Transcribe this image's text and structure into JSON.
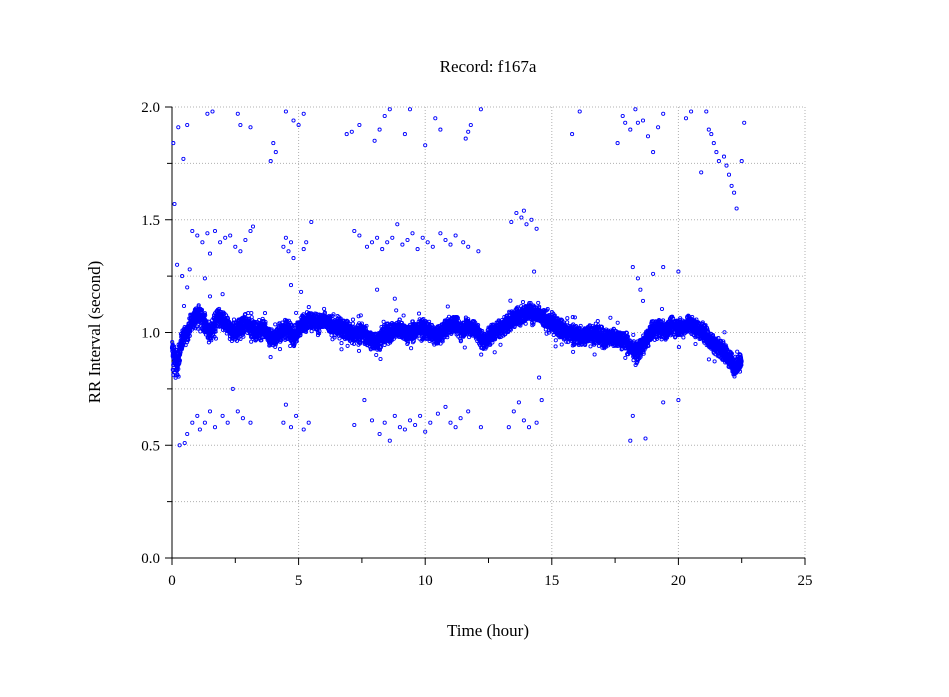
{
  "chart_data": {
    "type": "scatter",
    "title": "Record:  f167a",
    "xlabel": "Time (hour)",
    "ylabel": "RR Interval (second)",
    "xlim": [
      0,
      25
    ],
    "ylim": [
      0.0,
      2.0
    ],
    "x_ticks": [
      0,
      5,
      10,
      15,
      20,
      25
    ],
    "x_tick_labels": [
      "0",
      "5",
      "10",
      "15",
      "20",
      "25"
    ],
    "y_ticks": [
      0.0,
      0.5,
      1.0,
      1.5,
      2.0
    ],
    "y_tick_labels": [
      "0.0",
      "0.5",
      "1.0",
      "1.5",
      "2.0"
    ],
    "grid": true,
    "grid_style": "dotted",
    "marker": "open-circle",
    "series_color": "#0000ff",
    "x_range_of_data": [
      0,
      22.5
    ],
    "main_band": [
      [
        0.0,
        0.93
      ],
      [
        0.2,
        0.85
      ],
      [
        0.4,
        0.97
      ],
      [
        0.6,
        1.0
      ],
      [
        0.8,
        1.05
      ],
      [
        1.0,
        1.08
      ],
      [
        1.2,
        1.06
      ],
      [
        1.5,
        1.0
      ],
      [
        1.8,
        1.07
      ],
      [
        2.1,
        1.04
      ],
      [
        2.4,
        1.0
      ],
      [
        2.7,
        1.02
      ],
      [
        3.0,
        1.04
      ],
      [
        3.3,
        1.0
      ],
      [
        3.6,
        1.02
      ],
      [
        3.9,
        0.97
      ],
      [
        4.2,
        0.99
      ],
      [
        4.5,
        1.02
      ],
      [
        4.8,
        0.98
      ],
      [
        5.1,
        1.03
      ],
      [
        5.4,
        1.06
      ],
      [
        5.7,
        1.04
      ],
      [
        6.0,
        1.05
      ],
      [
        6.3,
        1.03
      ],
      [
        6.6,
        1.02
      ],
      [
        6.9,
        1.01
      ],
      [
        7.2,
        0.99
      ],
      [
        7.5,
        1.0
      ],
      [
        7.8,
        0.97
      ],
      [
        8.1,
        0.96
      ],
      [
        8.4,
        0.99
      ],
      [
        8.7,
        1.0
      ],
      [
        9.0,
        1.02
      ],
      [
        9.3,
        0.99
      ],
      [
        9.6,
        1.01
      ],
      [
        9.9,
        1.02
      ],
      [
        10.2,
        1.0
      ],
      [
        10.5,
        0.98
      ],
      [
        10.8,
        1.02
      ],
      [
        11.1,
        1.04
      ],
      [
        11.4,
        1.01
      ],
      [
        11.7,
        1.03
      ],
      [
        12.0,
        1.01
      ],
      [
        12.3,
        0.96
      ],
      [
        12.6,
        0.99
      ],
      [
        12.9,
        1.02
      ],
      [
        13.2,
        1.04
      ],
      [
        13.5,
        1.06
      ],
      [
        13.8,
        1.08
      ],
      [
        14.1,
        1.09
      ],
      [
        14.4,
        1.08
      ],
      [
        14.7,
        1.06
      ],
      [
        15.0,
        1.04
      ],
      [
        15.3,
        1.02
      ],
      [
        15.6,
        1.0
      ],
      [
        15.9,
        0.99
      ],
      [
        16.2,
        0.98
      ],
      [
        16.5,
        1.0
      ],
      [
        16.8,
        0.99
      ],
      [
        17.1,
        0.97
      ],
      [
        17.4,
        0.98
      ],
      [
        17.7,
        0.97
      ],
      [
        18.0,
        0.95
      ],
      [
        18.3,
        0.91
      ],
      [
        18.6,
        0.94
      ],
      [
        18.9,
        1.0
      ],
      [
        19.2,
        1.02
      ],
      [
        19.5,
        1.01
      ],
      [
        19.8,
        1.03
      ],
      [
        20.1,
        1.02
      ],
      [
        20.4,
        1.04
      ],
      [
        20.7,
        1.02
      ],
      [
        21.0,
        1.0
      ],
      [
        21.3,
        0.96
      ],
      [
        21.6,
        0.94
      ],
      [
        21.9,
        0.9
      ],
      [
        22.2,
        0.85
      ],
      [
        22.5,
        0.88
      ]
    ],
    "band_halfwidth": 0.045,
    "outliers": [
      [
        0.05,
        1.84
      ],
      [
        0.25,
        1.91
      ],
      [
        0.45,
        1.77
      ],
      [
        0.6,
        1.92
      ],
      [
        1.4,
        1.97
      ],
      [
        1.6,
        1.98
      ],
      [
        2.6,
        1.97
      ],
      [
        2.7,
        1.92
      ],
      [
        3.1,
        1.91
      ],
      [
        3.9,
        1.76
      ],
      [
        4.0,
        1.84
      ],
      [
        4.1,
        1.8
      ],
      [
        4.5,
        1.98
      ],
      [
        4.8,
        1.94
      ],
      [
        5.0,
        1.92
      ],
      [
        5.2,
        1.97
      ],
      [
        6.9,
        1.88
      ],
      [
        7.1,
        1.89
      ],
      [
        7.4,
        1.92
      ],
      [
        8.0,
        1.85
      ],
      [
        8.2,
        1.9
      ],
      [
        8.4,
        1.96
      ],
      [
        8.6,
        1.99
      ],
      [
        9.2,
        1.88
      ],
      [
        9.4,
        1.99
      ],
      [
        10.0,
        1.83
      ],
      [
        10.4,
        1.95
      ],
      [
        10.6,
        1.9
      ],
      [
        11.6,
        1.86
      ],
      [
        11.7,
        1.89
      ],
      [
        11.8,
        1.92
      ],
      [
        12.2,
        1.99
      ],
      [
        15.8,
        1.88
      ],
      [
        16.1,
        1.98
      ],
      [
        17.6,
        1.84
      ],
      [
        17.8,
        1.96
      ],
      [
        17.9,
        1.93
      ],
      [
        18.1,
        1.9
      ],
      [
        18.3,
        1.99
      ],
      [
        18.4,
        1.93
      ],
      [
        18.6,
        1.94
      ],
      [
        18.8,
        1.87
      ],
      [
        19.0,
        1.8
      ],
      [
        19.2,
        1.91
      ],
      [
        19.4,
        1.97
      ],
      [
        20.3,
        1.95
      ],
      [
        20.5,
        1.98
      ],
      [
        21.1,
        1.98
      ],
      [
        21.2,
        1.9
      ],
      [
        21.3,
        1.88
      ],
      [
        21.4,
        1.84
      ],
      [
        21.5,
        1.8
      ],
      [
        21.6,
        1.76
      ],
      [
        21.8,
        1.78
      ],
      [
        21.9,
        1.74
      ],
      [
        22.0,
        1.7
      ],
      [
        22.1,
        1.65
      ],
      [
        22.2,
        1.62
      ],
      [
        22.3,
        1.55
      ],
      [
        22.5,
        1.76
      ],
      [
        22.6,
        1.93
      ],
      [
        20.9,
        1.71
      ],
      [
        0.1,
        1.57
      ],
      [
        0.8,
        1.45
      ],
      [
        1.0,
        1.43
      ],
      [
        1.2,
        1.4
      ],
      [
        1.4,
        1.44
      ],
      [
        1.5,
        1.35
      ],
      [
        1.7,
        1.45
      ],
      [
        1.9,
        1.4
      ],
      [
        2.1,
        1.42
      ],
      [
        2.3,
        1.43
      ],
      [
        2.5,
        1.38
      ],
      [
        2.7,
        1.36
      ],
      [
        2.9,
        1.41
      ],
      [
        3.1,
        1.45
      ],
      [
        3.2,
        1.47
      ],
      [
        4.4,
        1.38
      ],
      [
        4.5,
        1.42
      ],
      [
        4.6,
        1.36
      ],
      [
        4.7,
        1.4
      ],
      [
        4.8,
        1.33
      ],
      [
        5.2,
        1.37
      ],
      [
        5.3,
        1.4
      ],
      [
        5.5,
        1.49
      ],
      [
        7.2,
        1.45
      ],
      [
        7.4,
        1.43
      ],
      [
        7.7,
        1.38
      ],
      [
        7.9,
        1.4
      ],
      [
        8.1,
        1.42
      ],
      [
        8.3,
        1.37
      ],
      [
        8.5,
        1.4
      ],
      [
        8.7,
        1.42
      ],
      [
        8.9,
        1.48
      ],
      [
        9.1,
        1.39
      ],
      [
        9.3,
        1.41
      ],
      [
        9.5,
        1.44
      ],
      [
        9.7,
        1.37
      ],
      [
        9.9,
        1.42
      ],
      [
        10.1,
        1.4
      ],
      [
        10.3,
        1.38
      ],
      [
        10.6,
        1.44
      ],
      [
        10.8,
        1.41
      ],
      [
        11.0,
        1.39
      ],
      [
        11.2,
        1.43
      ],
      [
        11.5,
        1.4
      ],
      [
        11.7,
        1.38
      ],
      [
        12.1,
        1.36
      ],
      [
        13.4,
        1.49
      ],
      [
        13.6,
        1.53
      ],
      [
        13.8,
        1.51
      ],
      [
        14.0,
        1.48
      ],
      [
        14.2,
        1.5
      ],
      [
        14.4,
        1.46
      ],
      [
        13.9,
        1.54
      ],
      [
        0.2,
        1.3
      ],
      [
        0.4,
        1.25
      ],
      [
        0.6,
        1.2
      ],
      [
        0.7,
        1.28
      ],
      [
        1.3,
        1.24
      ],
      [
        1.5,
        1.16
      ],
      [
        2.0,
        1.17
      ],
      [
        4.7,
        1.21
      ],
      [
        5.1,
        1.18
      ],
      [
        8.1,
        1.19
      ],
      [
        8.8,
        1.15
      ],
      [
        14.3,
        1.27
      ],
      [
        18.2,
        1.29
      ],
      [
        18.4,
        1.24
      ],
      [
        18.5,
        1.19
      ],
      [
        18.6,
        1.14
      ],
      [
        19.0,
        1.26
      ],
      [
        19.4,
        1.29
      ],
      [
        20.0,
        1.27
      ],
      [
        0.3,
        0.5
      ],
      [
        0.5,
        0.51
      ],
      [
        0.6,
        0.55
      ],
      [
        0.8,
        0.6
      ],
      [
        1.0,
        0.63
      ],
      [
        1.1,
        0.57
      ],
      [
        1.3,
        0.6
      ],
      [
        1.5,
        0.65
      ],
      [
        1.7,
        0.58
      ],
      [
        2.0,
        0.63
      ],
      [
        2.2,
        0.6
      ],
      [
        2.4,
        0.75
      ],
      [
        2.6,
        0.65
      ],
      [
        2.8,
        0.62
      ],
      [
        3.1,
        0.6
      ],
      [
        4.4,
        0.6
      ],
      [
        4.5,
        0.68
      ],
      [
        4.7,
        0.58
      ],
      [
        4.9,
        0.63
      ],
      [
        5.2,
        0.57
      ],
      [
        5.4,
        0.6
      ],
      [
        7.2,
        0.59
      ],
      [
        7.6,
        0.7
      ],
      [
        7.9,
        0.61
      ],
      [
        8.2,
        0.55
      ],
      [
        8.4,
        0.6
      ],
      [
        8.6,
        0.52
      ],
      [
        8.8,
        0.63
      ],
      [
        9.0,
        0.58
      ],
      [
        9.2,
        0.57
      ],
      [
        9.4,
        0.61
      ],
      [
        9.6,
        0.59
      ],
      [
        9.8,
        0.63
      ],
      [
        10.0,
        0.56
      ],
      [
        10.2,
        0.6
      ],
      [
        10.5,
        0.64
      ],
      [
        10.8,
        0.67
      ],
      [
        11.0,
        0.6
      ],
      [
        11.2,
        0.58
      ],
      [
        11.4,
        0.62
      ],
      [
        11.7,
        0.65
      ],
      [
        12.2,
        0.58
      ],
      [
        13.3,
        0.58
      ],
      [
        13.5,
        0.65
      ],
      [
        13.7,
        0.69
      ],
      [
        13.9,
        0.61
      ],
      [
        14.1,
        0.58
      ],
      [
        14.4,
        0.6
      ],
      [
        14.6,
        0.7
      ],
      [
        14.5,
        0.8
      ],
      [
        18.2,
        0.63
      ],
      [
        18.1,
        0.52
      ],
      [
        18.7,
        0.53
      ],
      [
        19.4,
        0.69
      ],
      [
        20.0,
        0.7
      ]
    ]
  }
}
